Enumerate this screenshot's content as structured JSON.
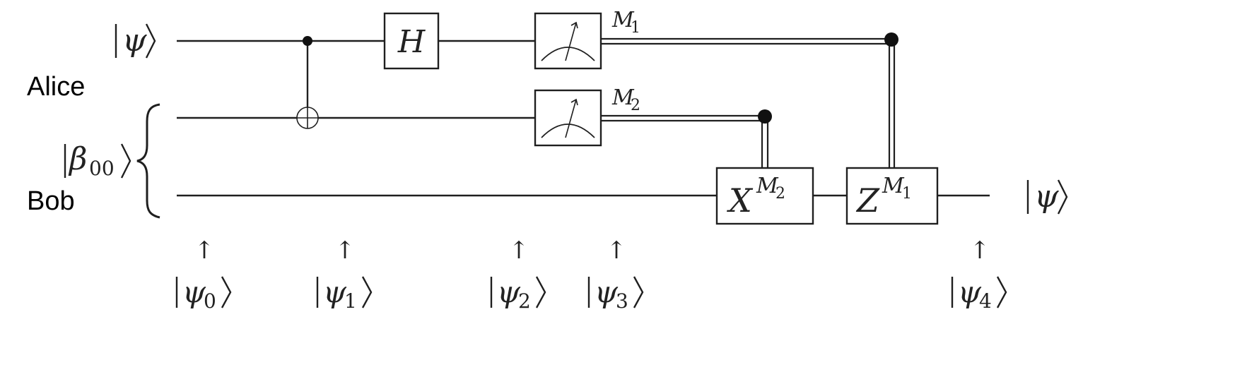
{
  "labels": {
    "alice": "Alice",
    "bob": "Bob",
    "qubit_psi": "ψ",
    "qubit_beta": "β",
    "qubit_beta_sub": "00",
    "output_psi": "ψ"
  },
  "gates": {
    "hadamard": "H",
    "x_gate": "X",
    "x_sup": "M",
    "x_sup_sub": "2",
    "z_gate": "Z",
    "z_sup": "M",
    "z_sup_sub": "1"
  },
  "measurements": {
    "m1": "M",
    "m1_sub": "1",
    "m2": "M",
    "m2_sub": "2"
  },
  "states": [
    {
      "arrow": "↑",
      "psi": "ψ",
      "sub": "0"
    },
    {
      "arrow": "↑",
      "psi": "ψ",
      "sub": "1"
    },
    {
      "arrow": "↑",
      "psi": "ψ",
      "sub": "2"
    },
    {
      "arrow": "↑",
      "psi": "ψ",
      "sub": "3"
    },
    {
      "arrow": "↑",
      "psi": "ψ",
      "sub": "4"
    }
  ],
  "colors": {
    "line": "#1f1f1f",
    "background": "#ffffff"
  }
}
